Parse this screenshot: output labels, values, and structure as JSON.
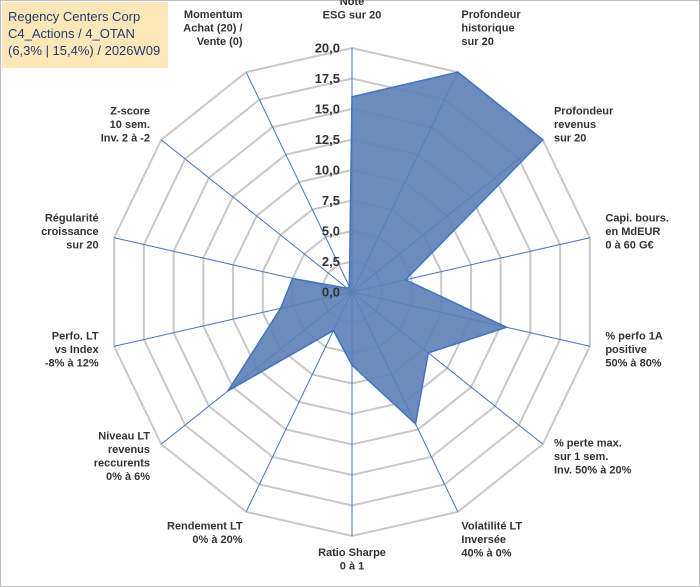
{
  "title_box": {
    "line1": "Regency Centers Corp",
    "line2": "C4_Actions / 4_OTAN",
    "line3": "(6,3% | 15,4%) / 2026W09"
  },
  "chart_data": {
    "type": "radar",
    "title": "Regency Centers Corp",
    "range": [
      0,
      20
    ],
    "ticks": [
      "0,0",
      "2,5",
      "5,0",
      "7,5",
      "10,0",
      "12,5",
      "15,0",
      "17,5",
      "20,0"
    ],
    "axes": [
      {
        "lines": [
          "Note",
          "ESG sur 20"
        ],
        "value": 16.0
      },
      {
        "lines": [
          "Profondeur",
          "historique",
          "sur 20"
        ],
        "value": 20.0
      },
      {
        "lines": [
          "Profondeur",
          "revenus",
          "sur 20"
        ],
        "value": 20.0
      },
      {
        "lines": [
          "Capi. bours.",
          "en MdEUR",
          "0 à 60 G€"
        ],
        "value": 4.5
      },
      {
        "lines": [
          "% perfo 1A",
          "positive",
          "50% à 80%"
        ],
        "value": 13.0
      },
      {
        "lines": [
          "% perte max.",
          "sur 1 sem.",
          "Inv. 50% à 20%"
        ],
        "value": 8.0
      },
      {
        "lines": [
          "Volatilité LT",
          "Inversée",
          "40% à 0%"
        ],
        "value": 12.0
      },
      {
        "lines": [
          "Ratio Sharpe",
          "0 à 1"
        ],
        "value": 6.0
      },
      {
        "lines": [
          "Rendement LT",
          "0% à 20%"
        ],
        "value": 3.5
      },
      {
        "lines": [
          "Niveau LT",
          "revenus",
          "reccurents",
          "0% à 6%"
        ],
        "value": 13.0
      },
      {
        "lines": [
          "Perfo. LT",
          "vs Index",
          "-8% à 12%"
        ],
        "value": 6.0
      },
      {
        "lines": [
          "Régularité",
          "croissance",
          "sur 20"
        ],
        "value": 5.0
      },
      {
        "lines": [
          "Z-score",
          "10 sem.",
          "Inv. 2 à -2"
        ],
        "value": 0.5
      },
      {
        "lines": [
          "Momentum",
          "Achat (20) /",
          "Vente (0)"
        ],
        "value": 0.5
      }
    ],
    "fill_color": "#5b80b5",
    "line_color": "#4472c4",
    "grid_color": "#c8c8c8"
  }
}
